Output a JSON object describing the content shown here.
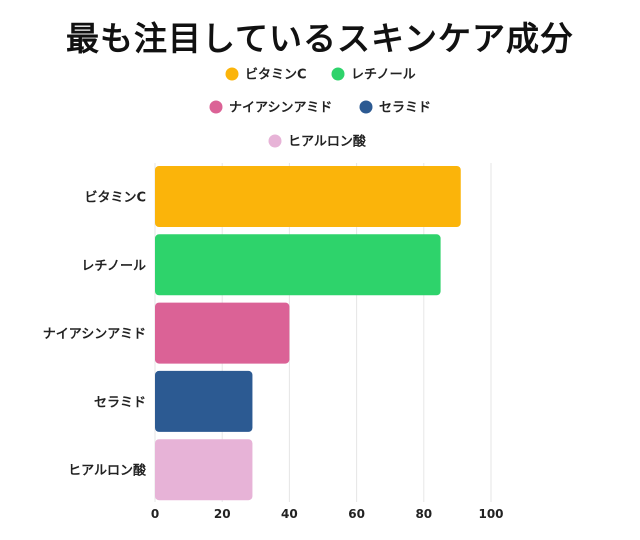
{
  "chart_data": {
    "type": "bar",
    "orientation": "horizontal",
    "title": "最も注目しているスキンケア成分",
    "categories": [
      "ビタミンC",
      "レチノール",
      "ナイアシンアミド",
      "セラミド",
      "ヒアルロン酸"
    ],
    "values": [
      91,
      85,
      40,
      29,
      29
    ],
    "colors": [
      "#fbb40a",
      "#2ed36b",
      "#db6296",
      "#2c5a92",
      "#e7b3d7"
    ],
    "legend": [
      "ビタミンC",
      "レチノール",
      "ナイアシンアミド",
      "セラミド",
      "ヒアルロン酸"
    ],
    "xlim": [
      0,
      100
    ],
    "xticks": [
      0,
      20,
      40,
      60,
      80,
      100
    ],
    "grid": true,
    "legend_position": "top"
  }
}
